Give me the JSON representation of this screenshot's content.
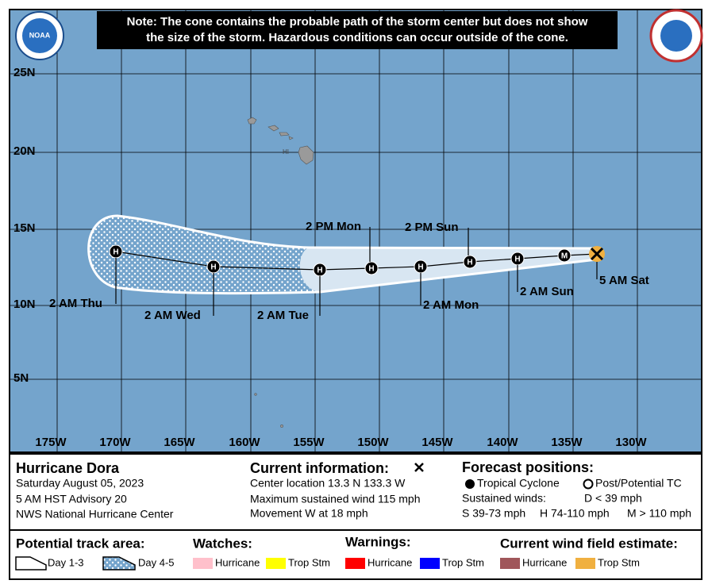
{
  "map": {
    "note": [
      "Note: The cone contains the probable path of the storm center but does not show",
      "the size of the storm. Hazardous conditions can occur outside of the cone."
    ],
    "logo_left": "NOAA",
    "lat_labels": [
      "25N",
      "20N",
      "15N",
      "10N",
      "5N"
    ],
    "lon_labels": [
      "175W",
      "170W",
      "165W",
      "160W",
      "155W",
      "150W",
      "145W",
      "140W",
      "135W",
      "130W"
    ],
    "region_label": "HI",
    "markers": [
      "M",
      "H",
      "H",
      "H",
      "H",
      "H",
      "H",
      "H"
    ],
    "time_labels": [
      "5 AM Sat",
      "2 AM Sun",
      "2 PM Sun",
      "2 AM Mon",
      "2 PM Mon",
      "2 AM Tue",
      "2 AM Wed",
      "2 AM Thu"
    ]
  },
  "info": {
    "storm": "Hurricane Dora",
    "date": "Saturday August 05, 2023",
    "advisory": "5 AM HST Advisory 20",
    "source": "NWS National Hurricane Center"
  },
  "current": {
    "title": "Current information:",
    "lines": [
      "Center location 13.3 N 133.3 W",
      "Maximum sustained wind 115 mph",
      "Movement W at 18 mph"
    ]
  },
  "forecast": {
    "title": "Forecast positions:",
    "tropical": "Tropical Cyclone",
    "post": "Post/Potential TC",
    "sustained": "Sustained winds:",
    "d": "D < 39 mph",
    "s": "S 39-73 mph",
    "h": "H 74-110 mph",
    "m": "M > 110 mph"
  },
  "legend": {
    "track_title": "Potential track area:",
    "day13": "Day 1-3",
    "day45": "Day 4-5",
    "watches": "Watches:",
    "watch_hurricane": "Hurricane",
    "watch_trop": "Trop Stm",
    "warnings": "Warnings:",
    "warn_hurricane": "Hurricane",
    "warn_trop": "Trop Stm",
    "wind_title": "Current wind field estimate:",
    "wind_hurricane": "Hurricane",
    "wind_trop": "Trop Stm"
  }
}
